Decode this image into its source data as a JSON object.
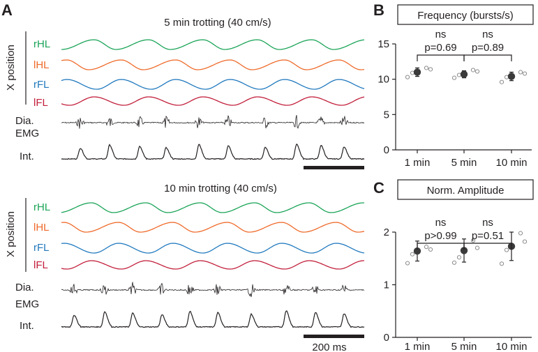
{
  "panel_a": {
    "letter": "A",
    "y_axis_label": "X position",
    "scale_bar_label": "200 ms",
    "trials": [
      {
        "title": "5 min trotting (40 cm/s)",
        "limbs": [
          {
            "label": "rHL",
            "color": "#1aa457"
          },
          {
            "label": "lHL",
            "color": "#ef6a2a"
          },
          {
            "label": "rFL",
            "color": "#2079be"
          },
          {
            "label": "lFL",
            "color": "#c21e3a"
          }
        ],
        "emg_label_1": "Dia.",
        "emg_label_2": "EMG",
        "int_label": "Int."
      },
      {
        "title": "10 min trotting (40 cm/s)",
        "limbs": [
          {
            "label": "rHL",
            "color": "#1aa457"
          },
          {
            "label": "lHL",
            "color": "#ef6a2a"
          },
          {
            "label": "rFL",
            "color": "#2079be"
          },
          {
            "label": "lFL",
            "color": "#c21e3a"
          }
        ],
        "emg_label_1": "Dia.",
        "emg_label_2": "EMG",
        "int_label": "Int."
      }
    ]
  },
  "chart_data": [
    {
      "type": "scatter",
      "letter": "B",
      "title": "Frequency (bursts/s)",
      "categories": [
        "1 min",
        "5 min",
        "10 min"
      ],
      "ylim": [
        0,
        15
      ],
      "yticks": [
        0,
        5,
        10,
        15
      ],
      "mean": [
        11.0,
        10.7,
        10.4
      ],
      "sd": [
        0.6,
        0.5,
        0.6
      ],
      "individual": [
        [
          10.3,
          11.6,
          10.9,
          11.4
        ],
        [
          10.2,
          11.3,
          10.6,
          11.1
        ],
        [
          9.6,
          11.0,
          10.3,
          10.8
        ]
      ],
      "comparisons": [
        {
          "from": 0,
          "to": 1,
          "label_top": "ns",
          "label_p": "p=0.69"
        },
        {
          "from": 1,
          "to": 2,
          "label_top": "ns",
          "label_p": "p=0.89"
        }
      ]
    },
    {
      "type": "scatter",
      "letter": "C",
      "title": "Norm. Amplitude",
      "categories": [
        "1 min",
        "5 min",
        "10 min"
      ],
      "ylim": [
        0,
        2
      ],
      "yticks": [
        0,
        1,
        2
      ],
      "mean": [
        1.64,
        1.65,
        1.73
      ],
      "sd": [
        0.19,
        0.22,
        0.27
      ],
      "individual": [
        [
          1.41,
          1.72,
          1.58,
          1.67
        ],
        [
          1.42,
          1.84,
          1.52,
          1.7
        ],
        [
          1.4,
          1.98,
          1.66,
          1.82
        ]
      ],
      "comparisons": [
        {
          "from": 0,
          "to": 1,
          "label_top": "ns",
          "label_p": "p>0.99"
        },
        {
          "from": 1,
          "to": 2,
          "label_top": "ns",
          "label_p": "p=0.51"
        }
      ]
    }
  ]
}
